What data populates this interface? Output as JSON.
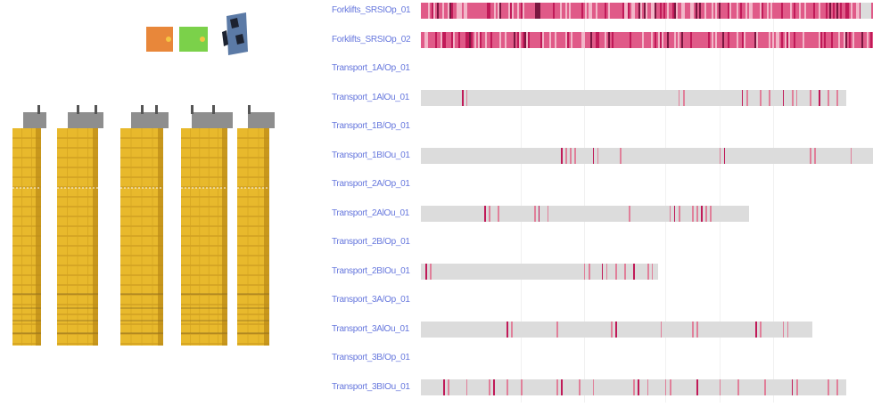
{
  "legend": [
    {
      "name": "orange-status-box",
      "color": "#e8873a",
      "dot": "#f5c542"
    },
    {
      "name": "green-status-box",
      "color": "#7bd14a",
      "dot": "#f5c542"
    },
    {
      "name": "forklift-icon",
      "color": "#5b7aa6"
    }
  ],
  "colors": {
    "rack_face": "#e8b92c",
    "rack_shade": "#c8971c",
    "rack_top": "#8e8e8e",
    "track": "#dcdcdc",
    "event": "#e0809a",
    "event_dark": "#c01a58",
    "forklift_base": "#d84c7a",
    "label": "#6677dd"
  },
  "timeline": {
    "rows": [
      {
        "label": "Forklifts_SRSIOp_01",
        "track": [
          0.0,
          1.0
        ],
        "events": "dense"
      },
      {
        "label": "Forklifts_SRSIOp_02",
        "track": [
          0.0,
          1.0
        ],
        "events": "dense"
      },
      {
        "label": "Transport_1A/Op_01",
        "track": null,
        "events": []
      },
      {
        "label": "Transport_1AlOu_01",
        "track": [
          0.0,
          0.94
        ],
        "events": [
          0.09,
          0.1,
          0.57,
          0.58,
          0.71,
          0.72,
          0.75,
          0.77,
          0.8,
          0.82,
          0.83,
          0.86,
          0.88,
          0.9,
          0.92
        ]
      },
      {
        "label": "Transport_1B/Op_01",
        "track": null,
        "events": []
      },
      {
        "label": "Transport_1BIOu_01",
        "track": [
          0.0,
          1.0
        ],
        "events": [
          0.31,
          0.32,
          0.33,
          0.34,
          0.38,
          0.39,
          0.44,
          0.66,
          0.67,
          0.86,
          0.87,
          0.95
        ]
      },
      {
        "label": "Transport_2A/Op_01",
        "track": null,
        "events": []
      },
      {
        "label": "Transport_2AlOu_01",
        "track": [
          0.0,
          0.725
        ],
        "events": [
          0.14,
          0.15,
          0.17,
          0.25,
          0.26,
          0.28,
          0.46,
          0.55,
          0.56,
          0.57,
          0.6,
          0.61,
          0.62,
          0.63,
          0.64
        ]
      },
      {
        "label": "Transport_2B/Op_01",
        "track": null,
        "events": []
      },
      {
        "label": "Transport_2BIOu_01",
        "track": [
          0.0,
          0.525
        ],
        "events": [
          0.01,
          0.02,
          0.36,
          0.37,
          0.4,
          0.41,
          0.43,
          0.45,
          0.47,
          0.5,
          0.51
        ]
      },
      {
        "label": "Transport_3A/Op_01",
        "track": null,
        "events": []
      },
      {
        "label": "Transport_3AlOu_01",
        "track": [
          0.0,
          0.865
        ],
        "events": [
          0.19,
          0.2,
          0.3,
          0.42,
          0.43,
          0.53,
          0.6,
          0.61,
          0.74,
          0.75,
          0.8,
          0.81
        ]
      },
      {
        "label": "Transport_3B/Op_01",
        "track": null,
        "events": []
      },
      {
        "label": "Transport_3BIOu_01",
        "track": [
          0.0,
          0.94
        ],
        "events": [
          0.05,
          0.06,
          0.1,
          0.15,
          0.16,
          0.19,
          0.22,
          0.3,
          0.31,
          0.35,
          0.38,
          0.47,
          0.48,
          0.5,
          0.54,
          0.55,
          0.61,
          0.66,
          0.7,
          0.76,
          0.82,
          0.83,
          0.9,
          0.92
        ]
      }
    ]
  }
}
